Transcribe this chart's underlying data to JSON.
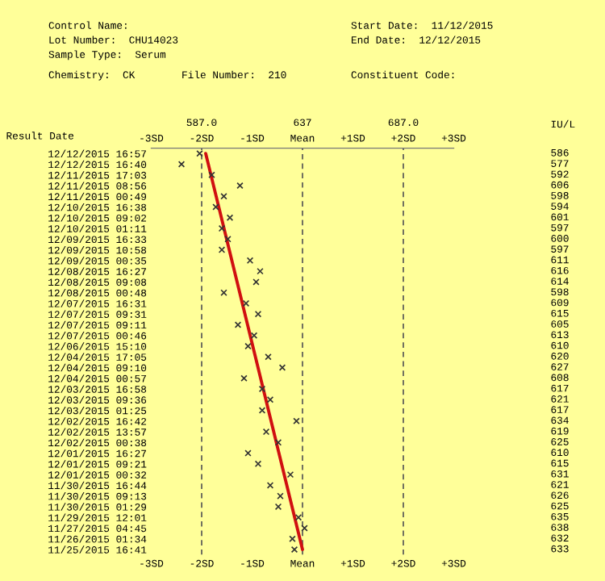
{
  "chart_data": {
    "type": "scatter",
    "orientation": "horizontal",
    "annotations": [
      "Control Name:",
      "Lot Number:  CHU14023",
      "Sample Type:  Serum",
      "Start Date:  11/12/2015",
      "End Date:  12/12/2015",
      "Chemistry:  CK",
      "File Number:  210",
      "Constituent Code:",
      "Result Date",
      "IU/L"
    ],
    "categories": [
      "12/12/2015 16:57",
      "12/12/2015 16:40",
      "12/11/2015 17:03",
      "12/11/2015 08:56",
      "12/11/2015 00:49",
      "12/10/2015 16:38",
      "12/10/2015 09:02",
      "12/10/2015 01:11",
      "12/09/2015 16:33",
      "12/09/2015 10:58",
      "12/09/2015 00:35",
      "12/08/2015 16:27",
      "12/08/2015 09:08",
      "12/08/2015 00:48",
      "12/07/2015 16:31",
      "12/07/2015 09:31",
      "12/07/2015 09:11",
      "12/07/2015 00:46",
      "12/06/2015 15:10",
      "12/04/2015 17:05",
      "12/04/2015 09:10",
      "12/04/2015 00:57",
      "12/03/2015 16:58",
      "12/03/2015 09:36",
      "12/03/2015 01:25",
      "12/02/2015 16:42",
      "12/02/2015 13:57",
      "12/02/2015 00:38",
      "12/01/2015 16:27",
      "12/01/2015 09:21",
      "12/01/2015 00:32",
      "11/30/2015 16:44",
      "11/30/2015 09:13",
      "11/30/2015 01:29",
      "11/29/2015 12:01",
      "11/27/2015 04:45",
      "11/26/2015 01:34",
      "11/25/2015 16:41"
    ],
    "series": [
      {
        "axis": "x2",
        "color": "#333333",
        "marker": "cross",
        "data_labels": true,
        "values": [
          586,
          577,
          592,
          606,
          598,
          594,
          601,
          597,
          600,
          597,
          611,
          616,
          614,
          598,
          609,
          615,
          605,
          613,
          610,
          620,
          627,
          608,
          617,
          621,
          617,
          634,
          619,
          625,
          610,
          615,
          631,
          621,
          626,
          625,
          635,
          638,
          632,
          633
        ]
      },
      {
        "type": "line",
        "axis": "x2",
        "color": "#d01010",
        "values": [
          589,
          null,
          null,
          null,
          null,
          null,
          null,
          null,
          null,
          null,
          null,
          null,
          null,
          null,
          null,
          null,
          null,
          null,
          null,
          null,
          null,
          null,
          null,
          null,
          null,
          null,
          null,
          null,
          null,
          null,
          null,
          null,
          null,
          null,
          null,
          null,
          null,
          637
        ]
      }
    ],
    "xlim": [
      -3,
      3
    ],
    "xticks": [
      {
        "value": -3,
        "label": "-3SD"
      },
      {
        "value": -2,
        "label": "-2SD"
      },
      {
        "value": -1,
        "label": "-1SD"
      },
      {
        "value": 0,
        "label": "Mean"
      },
      {
        "value": 1,
        "label": "+1SD"
      },
      {
        "value": 2,
        "label": "+2SD"
      },
      {
        "value": 3,
        "label": "+3SD"
      }
    ],
    "x2lim": [
      562,
      712
    ],
    "x2ticks": [
      {
        "value": 587,
        "label": "587.0"
      },
      637,
      {
        "value": 687,
        "label": "687.0"
      }
    ],
    "ref_lines": [
      {
        "axis": "x2",
        "value": 587,
        "line_style": "dashed",
        "color": "#555555"
      },
      {
        "axis": "x2",
        "value": 637,
        "line_style": "dashed",
        "color": "#555555"
      },
      {
        "axis": "x2",
        "value": 687,
        "line_style": "dashed",
        "color": "#555555"
      }
    ],
    "grid": false,
    "legend": false
  }
}
